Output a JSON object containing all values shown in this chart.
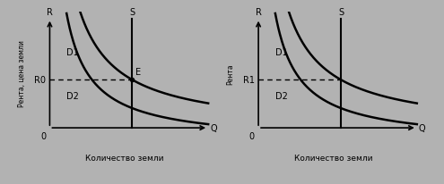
{
  "bg_color": "#b2b2b2",
  "line_color": "#000000",
  "fig_width": 4.95,
  "fig_height": 2.07,
  "left_ylabel": "Рента, цена земли",
  "right_ylabel": "Рента",
  "left_xlabel": "Количество земли",
  "right_xlabel": "Количество земли",
  "left_r0_label": "R0",
  "left_e_label": "E",
  "left_s_label": "S",
  "left_d1_label": "D1",
  "left_d2_label": "D2",
  "right_r1_label": "R1",
  "right_s_label": "S",
  "right_d1_label": "D1",
  "right_d2_label": "D2",
  "zero_label": "0",
  "r_label": "R",
  "q_label": "Q"
}
